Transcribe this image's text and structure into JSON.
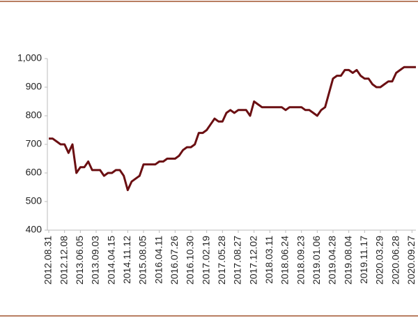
{
  "chart_data": {
    "type": "line",
    "categories": [
      "2012.08.31",
      null,
      null,
      null,
      "2012.12.08",
      null,
      null,
      null,
      "2013.06.05",
      null,
      null,
      null,
      "2013.09.03",
      null,
      null,
      null,
      "2014.04.15",
      null,
      null,
      null,
      "2014.11.12",
      null,
      null,
      null,
      "2015.08.05",
      null,
      null,
      null,
      "2016.04.11",
      null,
      null,
      null,
      "2016.07.26",
      null,
      null,
      null,
      "2016.10.30",
      null,
      null,
      null,
      "2017.02.19",
      null,
      null,
      null,
      "2017.05.28",
      null,
      null,
      null,
      "2017.08.27",
      null,
      null,
      null,
      "2017.12.02",
      null,
      null,
      null,
      "2018.03.11",
      null,
      null,
      null,
      "2018.06.24",
      null,
      null,
      null,
      "2018.09.23",
      null,
      null,
      null,
      "2019.01.06",
      null,
      null,
      null,
      "2019.04.28",
      null,
      null,
      null,
      "2019.08.04",
      null,
      null,
      null,
      "2019.11.17",
      null,
      null,
      null,
      "2020.03.29",
      null,
      null,
      null,
      "2020.06.28",
      null,
      null,
      null,
      "2020.09.27",
      null
    ],
    "values": [
      720,
      720,
      710,
      700,
      700,
      670,
      700,
      600,
      620,
      620,
      640,
      610,
      610,
      610,
      590,
      600,
      600,
      610,
      610,
      590,
      540,
      570,
      580,
      590,
      630,
      630,
      630,
      630,
      640,
      640,
      650,
      650,
      650,
      660,
      680,
      690,
      690,
      700,
      740,
      740,
      750,
      770,
      790,
      780,
      780,
      810,
      820,
      810,
      820,
      820,
      820,
      800,
      850,
      840,
      830,
      830,
      830,
      830,
      830,
      830,
      820,
      830,
      830,
      830,
      830,
      820,
      820,
      810,
      800,
      820,
      830,
      880,
      930,
      940,
      940,
      960,
      960,
      950,
      960,
      940,
      930,
      930,
      910,
      900,
      900,
      910,
      920,
      920,
      950,
      960,
      970,
      970,
      970,
      970
    ],
    "color": "#6b0f12",
    "ylim": [
      400,
      1000
    ],
    "yticks": [
      400,
      500,
      600,
      700,
      800,
      900,
      {
        "value": 1000,
        "label": "1,000"
      }
    ],
    "grid": false
  }
}
